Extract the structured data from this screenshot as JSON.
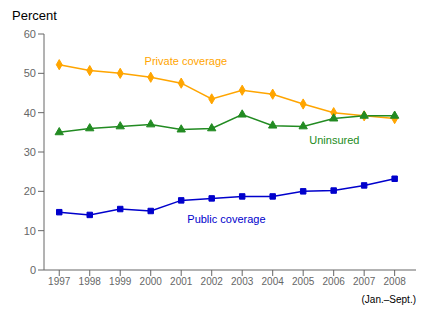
{
  "chart_data": {
    "type": "line",
    "ylabel": "Percent",
    "xlabel": "(Jan.–Sept.)",
    "x": [
      1997,
      1998,
      1999,
      2000,
      2001,
      2002,
      2003,
      2004,
      2005,
      2006,
      2007,
      2008
    ],
    "series": [
      {
        "name": "Private coverage",
        "color": "#FFA500",
        "marker": "diamond",
        "values": [
          52.2,
          50.7,
          50.0,
          49.0,
          47.5,
          43.5,
          45.7,
          44.7,
          42.2,
          40.0,
          39.2,
          38.5
        ]
      },
      {
        "name": "Uninsured",
        "color": "#228B22",
        "marker": "triangle",
        "values": [
          35.0,
          36.0,
          36.5,
          37.0,
          35.7,
          36.0,
          39.5,
          36.7,
          36.5,
          38.5,
          39.2,
          39.2
        ]
      },
      {
        "name": "Public coverage",
        "color": "#0000CC",
        "marker": "square",
        "values": [
          14.7,
          14.0,
          15.5,
          15.0,
          17.7,
          18.2,
          18.7,
          18.7,
          20.0,
          20.2,
          21.5,
          23.2
        ]
      }
    ],
    "annotations": [
      {
        "text": "Private coverage",
        "x": 1999.8,
        "y": 51.5,
        "color": "#FFA500"
      },
      {
        "text": "Uninsured",
        "x": 2005.2,
        "y": 34.5,
        "color": "#228B22"
      },
      {
        "text": "Public coverage",
        "x": 2001.2,
        "y": 14.5,
        "color": "#0000CC"
      }
    ],
    "xlim": [
      1996.5,
      2008.7
    ],
    "xticks": [
      1997,
      1998,
      1999,
      2000,
      2001,
      2002,
      2003,
      2004,
      2005,
      2006,
      2007,
      2008
    ],
    "ylim": [
      0,
      60
    ],
    "yticks": [
      0,
      10,
      20,
      30,
      40,
      50,
      60
    ],
    "grid": false,
    "legend": false
  }
}
